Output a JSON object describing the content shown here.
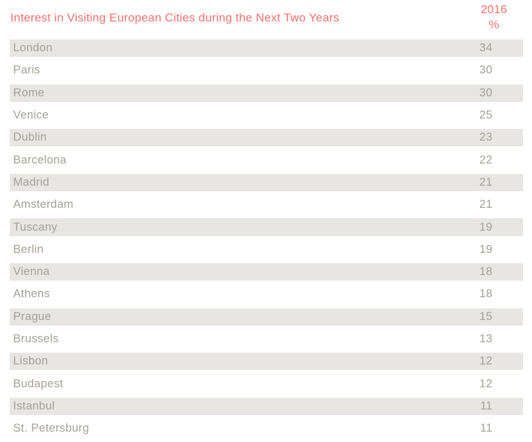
{
  "header": {
    "title": "Interest in Visiting European Cities during the Next Two Years",
    "year_label": "2016",
    "percent_label": "%"
  },
  "colors": {
    "accent": "#F4716E",
    "row_band": "#E8E6E3",
    "row_text": "#A5A099",
    "background": "#FFFFFF"
  },
  "chart_data": {
    "type": "table",
    "title": "Interest in Visiting European Cities during the Next Two Years",
    "column_header": "2016 %",
    "categories": [
      "London",
      "Paris",
      "Rome",
      "Venice",
      "Dublin",
      "Barcelona",
      "Madrid",
      "Amsterdam",
      "Tuscany",
      "Berlin",
      "Vienna",
      "Athens",
      "Prague",
      "Brussels",
      "Lisbon",
      "Budapest",
      "Istanbul",
      "St. Petersburg"
    ],
    "values": [
      34,
      30,
      30,
      25,
      23,
      22,
      21,
      21,
      19,
      19,
      18,
      18,
      15,
      13,
      12,
      12,
      11,
      11
    ],
    "layout": "alternating shaded rows, values right-aligned, no gridlines"
  },
  "rows": [
    {
      "city": "London",
      "value": "34"
    },
    {
      "city": "Paris",
      "value": "30"
    },
    {
      "city": "Rome",
      "value": "30"
    },
    {
      "city": "Venice",
      "value": "25"
    },
    {
      "city": "Dublin",
      "value": "23"
    },
    {
      "city": "Barcelona",
      "value": "22"
    },
    {
      "city": "Madrid",
      "value": "21"
    },
    {
      "city": "Amsterdam",
      "value": "21"
    },
    {
      "city": "Tuscany",
      "value": "19"
    },
    {
      "city": "Berlin",
      "value": "19"
    },
    {
      "city": "Vienna",
      "value": "18"
    },
    {
      "city": "Athens",
      "value": "18"
    },
    {
      "city": "Prague",
      "value": "15"
    },
    {
      "city": "Brussels",
      "value": "13"
    },
    {
      "city": "Lisbon",
      "value": "12"
    },
    {
      "city": "Budapest",
      "value": "12"
    },
    {
      "city": "Istanbul",
      "value": "11"
    },
    {
      "city": "St. Petersburg",
      "value": "11"
    }
  ]
}
